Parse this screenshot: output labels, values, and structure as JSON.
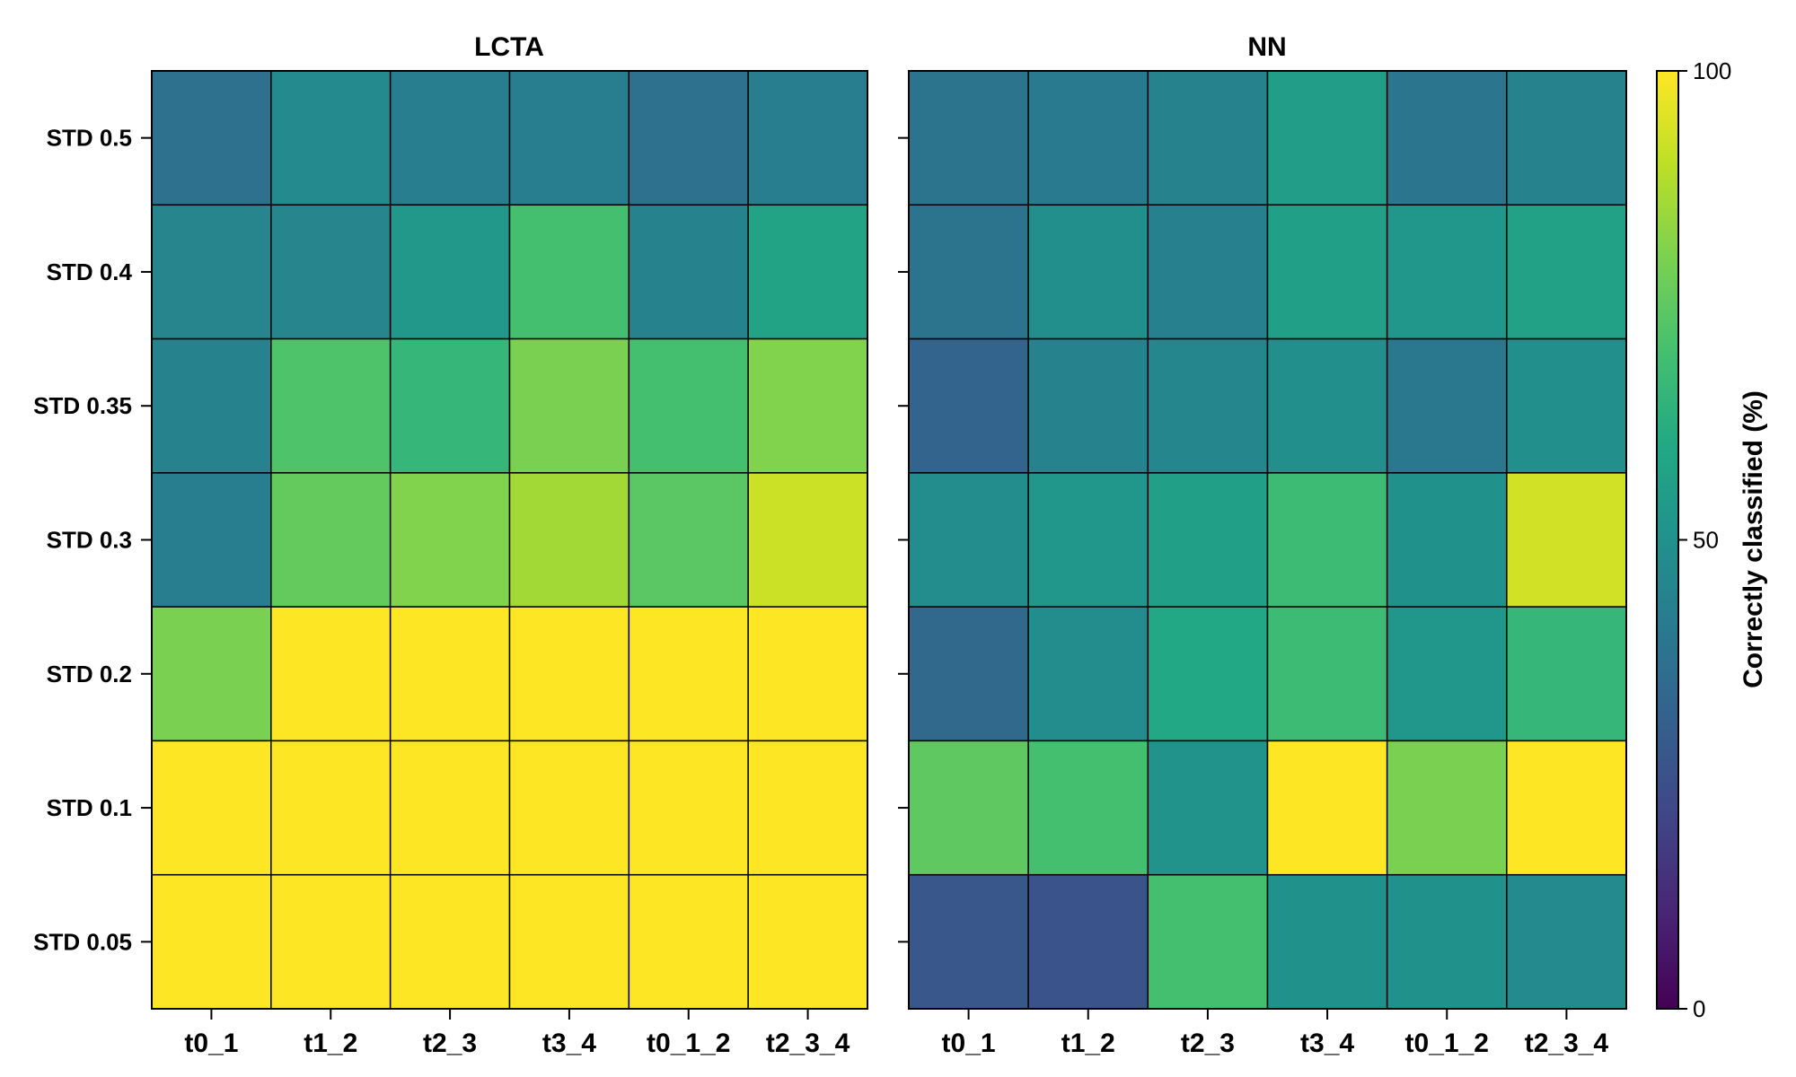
{
  "chart_data": [
    {
      "type": "heatmap",
      "title": "LCTA",
      "x_categories": [
        "t0_1",
        "t1_2",
        "t2_3",
        "t3_4",
        "t0_1_2",
        "t2_3_4"
      ],
      "y_categories": [
        "STD 0.5",
        "STD 0.4",
        "STD 0.35",
        "STD 0.3",
        "STD 0.2",
        "STD 0.1",
        "STD 0.05"
      ],
      "values": [
        [
          37,
          47,
          42,
          42,
          37,
          42
        ],
        [
          45,
          45,
          53,
          70,
          44,
          58
        ],
        [
          44,
          72,
          66,
          80,
          70,
          81
        ],
        [
          42,
          76,
          81,
          86,
          74,
          92
        ],
        [
          80,
          100,
          100,
          100,
          100,
          100
        ],
        [
          100,
          100,
          100,
          100,
          100,
          100
        ],
        [
          100,
          100,
          100,
          100,
          100,
          100
        ]
      ]
    },
    {
      "type": "heatmap",
      "title": "NN",
      "x_categories": [
        "t0_1",
        "t1_2",
        "t2_3",
        "t3_4",
        "t0_1_2",
        "t2_3_4"
      ],
      "y_categories": [
        "STD 0.5",
        "STD 0.4",
        "STD 0.35",
        "STD 0.3",
        "STD 0.2",
        "STD 0.1",
        "STD 0.05"
      ],
      "values": [
        [
          38,
          41,
          44,
          55,
          39,
          44
        ],
        [
          38,
          49,
          43,
          56,
          52,
          57
        ],
        [
          32,
          44,
          46,
          49,
          40,
          49
        ],
        [
          48,
          52,
          56,
          68,
          50,
          93
        ],
        [
          34,
          48,
          60,
          68,
          52,
          66
        ],
        [
          75,
          70,
          51,
          100,
          80,
          100
        ],
        [
          27,
          26,
          70,
          50,
          50,
          47
        ]
      ]
    }
  ],
  "colorbar": {
    "label": "Correctly classified (%)",
    "min": 0,
    "max": 100,
    "ticks": [
      {
        "value": 0,
        "label": "0"
      },
      {
        "value": 50,
        "label": "50"
      },
      {
        "value": 100,
        "label": "100"
      }
    ],
    "colormap": "viridis"
  }
}
